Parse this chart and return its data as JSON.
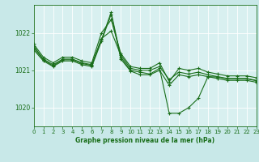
{
  "background_color": "#c8e8e8",
  "plot_bg_color": "#d8f0f0",
  "grid_color": "#ffffff",
  "line_color": "#1a6e1a",
  "title": "Graphe pression niveau de la mer (hPa)",
  "xlim": [
    0,
    23
  ],
  "ylim": [
    1019.5,
    1022.75
  ],
  "yticks": [
    1020,
    1021,
    1022
  ],
  "xticks": [
    0,
    1,
    2,
    3,
    4,
    5,
    6,
    7,
    8,
    9,
    10,
    11,
    12,
    13,
    14,
    15,
    16,
    17,
    18,
    19,
    20,
    21,
    22,
    23
  ],
  "series": [
    [
      1021.7,
      1021.35,
      1021.2,
      1021.35,
      1021.35,
      1021.25,
      1021.2,
      1022.0,
      1022.35,
      1021.45,
      1021.1,
      1021.05,
      1021.05,
      1021.2,
      1020.7,
      1021.05,
      1021.0,
      1021.05,
      1020.95,
      1020.9,
      1020.85,
      1020.85,
      1020.85,
      1020.8
    ],
    [
      1021.65,
      1021.3,
      1021.15,
      1021.3,
      1021.3,
      1021.2,
      1021.15,
      1021.85,
      1022.05,
      1021.4,
      1021.05,
      1021.0,
      1021.0,
      1021.1,
      1020.75,
      1020.95,
      1020.9,
      1020.95,
      1020.88,
      1020.83,
      1020.78,
      1020.78,
      1020.78,
      1020.73
    ],
    [
      1021.6,
      1021.28,
      1021.12,
      1021.28,
      1021.28,
      1021.18,
      1021.13,
      1021.82,
      1022.55,
      1021.35,
      1021.0,
      1020.95,
      1020.9,
      1021.05,
      1019.85,
      1019.85,
      1020.0,
      1020.25,
      1020.83,
      1020.82,
      1020.77,
      1020.77,
      1020.77,
      1020.72
    ],
    [
      1021.55,
      1021.25,
      1021.1,
      1021.25,
      1021.25,
      1021.15,
      1021.1,
      1021.78,
      1022.5,
      1021.3,
      1020.98,
      1020.88,
      1020.88,
      1021.0,
      1020.6,
      1020.88,
      1020.83,
      1020.88,
      1020.83,
      1020.78,
      1020.73,
      1020.73,
      1020.73,
      1020.68
    ]
  ]
}
